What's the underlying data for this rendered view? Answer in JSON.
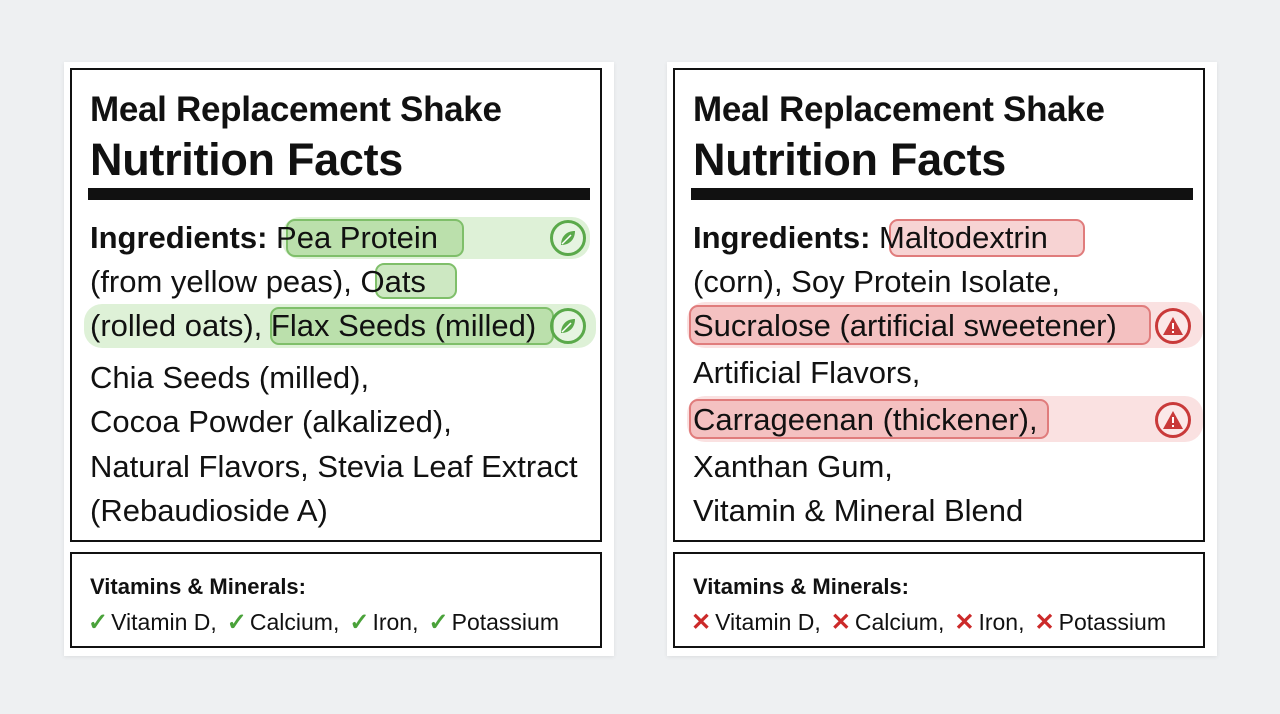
{
  "left": {
    "title_line1": "Meal Replacement Shake",
    "title_line2": "Nutrition Facts",
    "ingredients_label": "Ingredients:",
    "ing1": "Pea Protein",
    "line2_a": "(from yellow peas), ",
    "ing2": "Oats",
    "line3_a": "(rolled oats), ",
    "ing3": "Flax Seeds (milled)",
    "line4": "Chia Seeds (milled),",
    "line5": "Cocoa Powder (alkalized),",
    "line6": "Natural Flavors, Stevia Leaf Extract",
    "line7": "(Rebaudioside A)",
    "vitamins_title": "Vitamins & Minerals:",
    "vitamins": [
      {
        "mark": "✓",
        "label": "Vitamin D,"
      },
      {
        "mark": "✓",
        "label": "Calcium,"
      },
      {
        "mark": "✓",
        "label": "Iron,"
      },
      {
        "mark": "✓",
        "label": "Potassium"
      }
    ],
    "highlight_color": "#7fbf6a",
    "icon": "leaf-icon"
  },
  "right": {
    "title_line1": "Meal Replacement Shake",
    "title_line2": "Nutrition Facts",
    "ingredients_label": "Ingredients:",
    "ing1": "Maltodextrin",
    "line2": "(corn), Soy Protein Isolate,",
    "ing2": "Sucralose (artificial sweetener)",
    "line4": "Artificial Flavors,",
    "ing3": "Carrageenan (thickener),",
    "line6": "Xanthan Gum,",
    "line7": "Vitamin & Mineral Blend",
    "vitamins_title": "Vitamins & Minerals:",
    "vitamins": [
      {
        "mark": "✕",
        "label": "Vitamin D,"
      },
      {
        "mark": "✕",
        "label": "Calcium,"
      },
      {
        "mark": "✕",
        "label": "Iron,"
      },
      {
        "mark": "✕",
        "label": "Potassium"
      }
    ],
    "highlight_color": "#e07c7c",
    "icon": "warning-icon"
  }
}
